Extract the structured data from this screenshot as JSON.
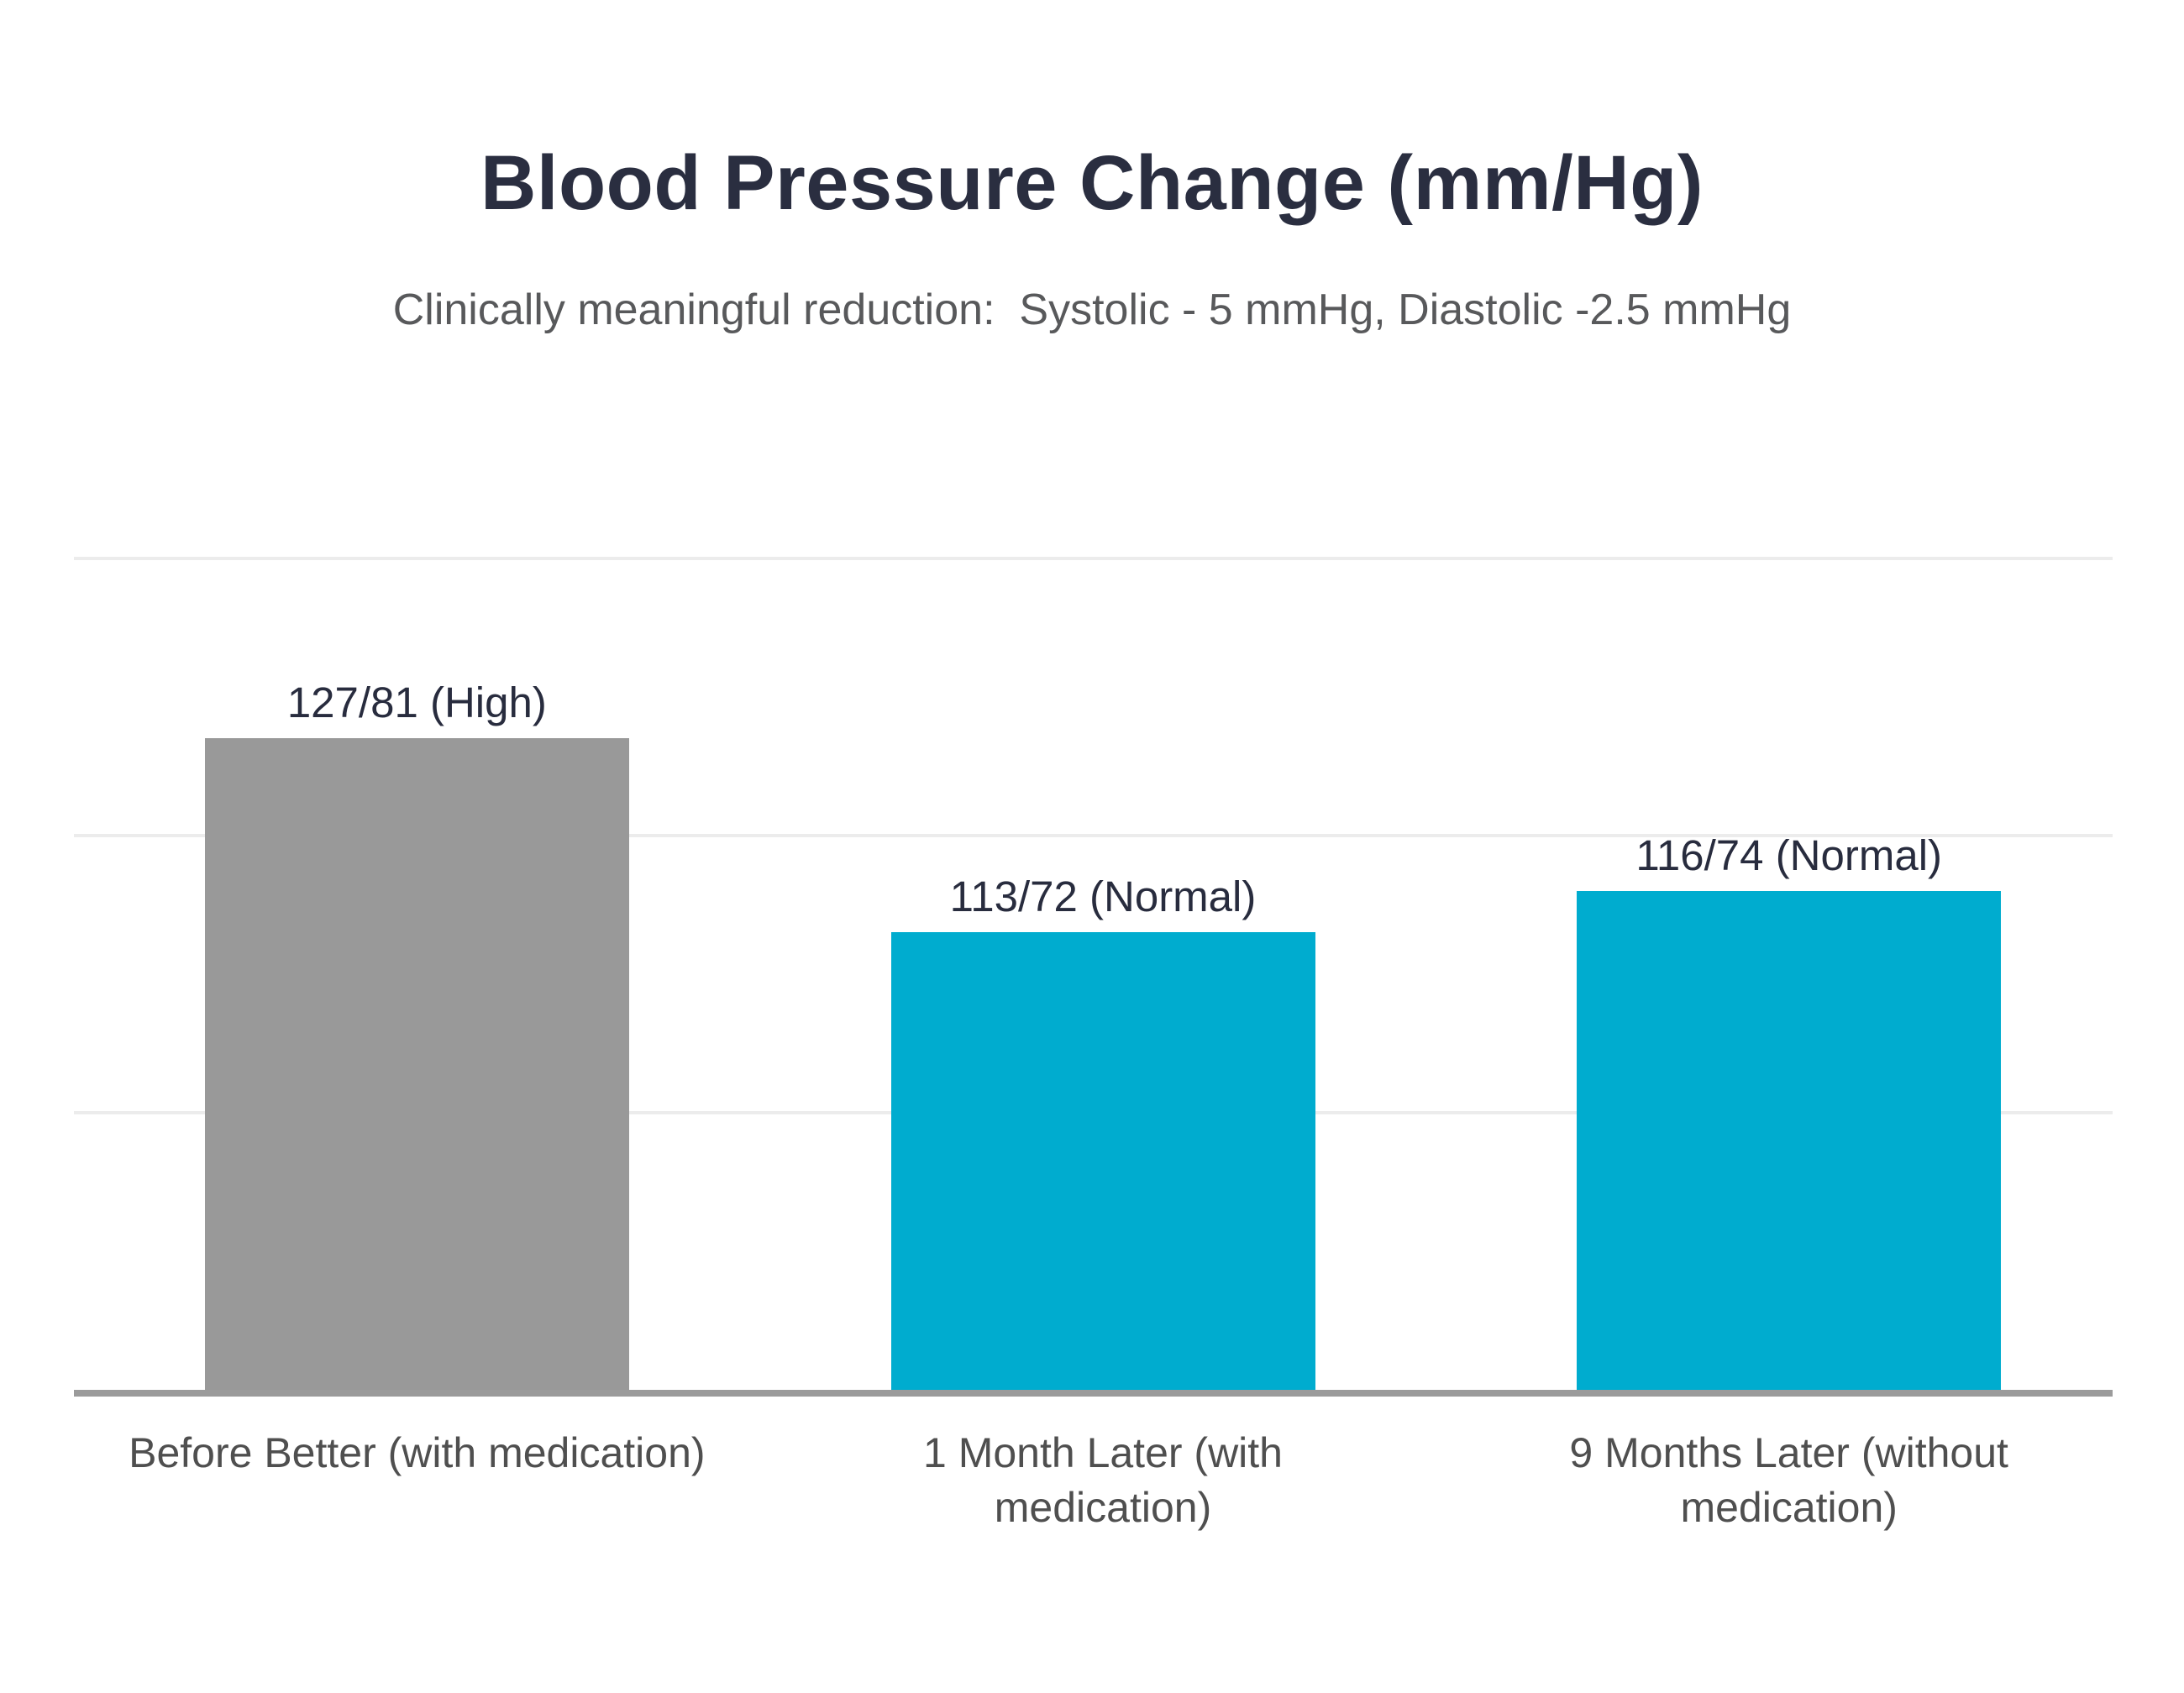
{
  "chart": {
    "title": "Blood Pressure Change (mm/Hg)",
    "subtitle": "Clinically meaningful reduction:  Systolic - 5 mmHg, Diastolic -2.5 mmHg"
  },
  "chart_data": {
    "type": "bar",
    "title": "Blood Pressure Change (mm/Hg)",
    "subtitle": "Clinically meaningful reduction:  Systolic - 5 mmHg, Diastolic -2.5 mmHg",
    "unit": "mm/Hg",
    "categories": [
      "Before Better (with medication)",
      "1 Month Later (with medication)",
      "9 Months Later (without medication)"
    ],
    "category_lines": [
      [
        "Before Better (with medication)"
      ],
      [
        "1 Month Later (with",
        "medication)"
      ],
      [
        "9 Months Later (without",
        "medication)"
      ]
    ],
    "bars": [
      {
        "label": "127/81 (High)",
        "systolic": 127,
        "diastolic": 81,
        "status": "High",
        "color": "#999999"
      },
      {
        "label": "113/72 (Normal)",
        "systolic": 113,
        "diastolic": 72,
        "status": "Normal",
        "color": "#00ACCF"
      },
      {
        "label": "116/74 (Normal)",
        "systolic": 116,
        "diastolic": 74,
        "status": "Normal",
        "color": "#00ACCF"
      }
    ],
    "ylim": [
      80,
      149
    ],
    "gridline_values": [
      100,
      120,
      140
    ],
    "y_axis_labels_visible": false,
    "legend": "none",
    "grid": "horizontal-light"
  },
  "colors": {
    "title": "#2A2E40",
    "subtitle": "#58595B",
    "annotation": "#282C3E",
    "category_label": "#4F4F4F",
    "bar_gray": "#999999",
    "bar_cyan": "#00ACCF",
    "gridline": "#ECECEC",
    "axis_line": "#9B9B9B",
    "background": "#FFFFFF"
  }
}
